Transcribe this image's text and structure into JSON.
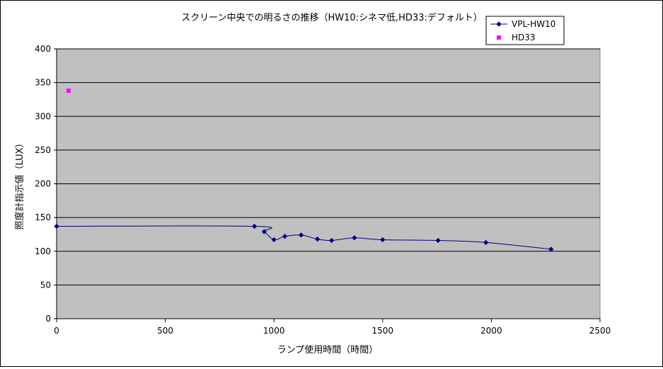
{
  "chart_data": {
    "type": "scatter",
    "title": "スクリーン中央での明るさの推移（HW10:シネマ低,HD33:デフォルト）",
    "xlabel": "ランプ使用時間（時間）",
    "ylabel": "照度計指示値（LUX）",
    "xlim": [
      0,
      2500
    ],
    "ylim": [
      0,
      400
    ],
    "xticks": [
      "0",
      "500",
      "1000",
      "1500",
      "2000",
      "2500"
    ],
    "yticks": [
      "0",
      "50",
      "100",
      "150",
      "200",
      "250",
      "300",
      "350",
      "400"
    ],
    "grid": "horizontal",
    "legend_position": "top-right",
    "plot_background": "#c0c0c0",
    "series": [
      {
        "name": "VPL-HW10",
        "color": "#000080",
        "marker": "diamond",
        "line": true,
        "points": [
          {
            "x": 0,
            "y": 137
          },
          {
            "x": 910,
            "y": 137
          },
          {
            "x": 955,
            "y": 129
          },
          {
            "x": 1000,
            "y": 117
          },
          {
            "x": 1050,
            "y": 122
          },
          {
            "x": 1125,
            "y": 124
          },
          {
            "x": 1200,
            "y": 118
          },
          {
            "x": 1265,
            "y": 116
          },
          {
            "x": 1370,
            "y": 120
          },
          {
            "x": 1500,
            "y": 117
          },
          {
            "x": 1755,
            "y": 116
          },
          {
            "x": 1975,
            "y": 113
          },
          {
            "x": 2275,
            "y": 103
          }
        ]
      },
      {
        "name": "HD33",
        "color": "#ff00ff",
        "marker": "square",
        "line": false,
        "points": [
          {
            "x": 55,
            "y": 338
          }
        ]
      }
    ]
  }
}
